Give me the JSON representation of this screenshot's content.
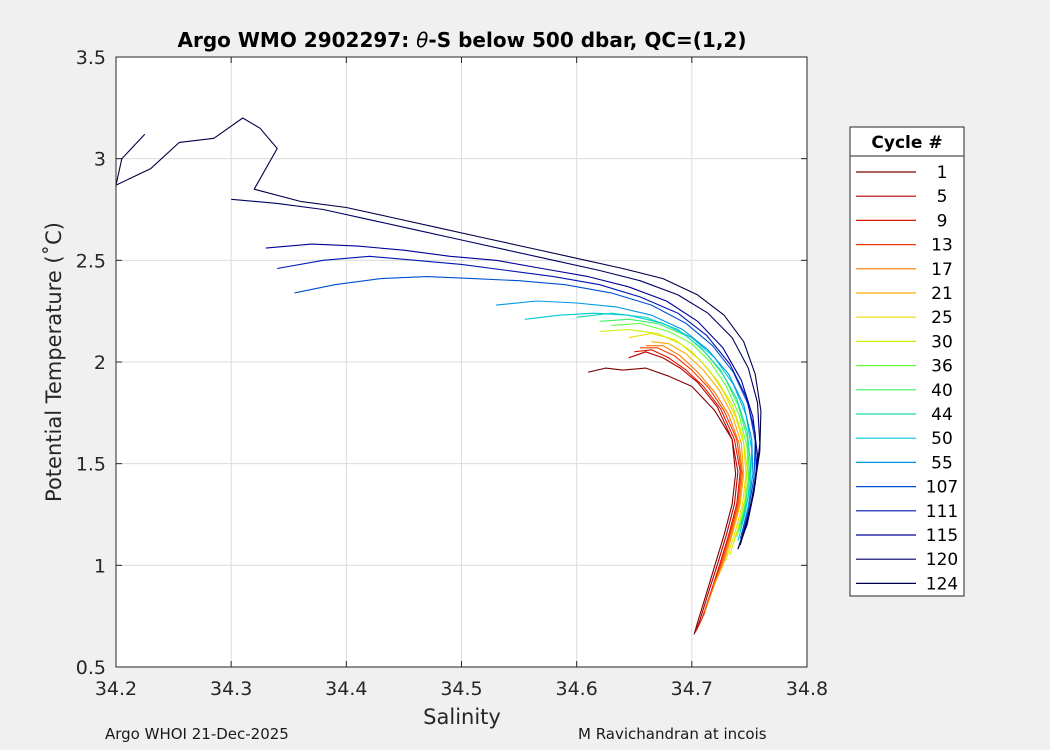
{
  "chart_data": {
    "type": "line",
    "title": "Argo WMO 2902297: θ-S below 500 dbar,  QC=(1,2)",
    "title_parts": {
      "prefix": "Argo WMO 2902297: ",
      "symbol": "θ",
      "suffix": "-S below 500 dbar,  QC=(1,2)"
    },
    "xlabel": "Salinity",
    "ylabel": "Potential Temperature (˚C)",
    "xlim": [
      34.2,
      34.8
    ],
    "ylim": [
      0.5,
      3.5
    ],
    "xticks": [
      "34.2",
      "34.3",
      "34.4",
      "34.5",
      "34.6",
      "34.7",
      "34.8"
    ],
    "yticks": [
      "0.5",
      "1",
      "1.5",
      "2",
      "2.5",
      "3",
      "3.5"
    ],
    "grid": true,
    "legend_title": "Cycle #",
    "legend_position": "right-outside",
    "series": [
      {
        "name": "1",
        "color": "#800000",
        "values": [
          [
            34.61,
            1.95
          ],
          [
            34.625,
            1.97
          ],
          [
            34.64,
            1.96
          ],
          [
            34.66,
            1.97
          ],
          [
            34.68,
            1.93
          ],
          [
            34.7,
            1.88
          ],
          [
            34.72,
            1.76
          ],
          [
            34.735,
            1.62
          ],
          [
            34.738,
            1.45
          ],
          [
            34.735,
            1.3
          ],
          [
            34.728,
            1.15
          ],
          [
            34.72,
            1.0
          ],
          [
            34.712,
            0.85
          ],
          [
            34.705,
            0.72
          ],
          [
            34.702,
            0.66
          ]
        ]
      },
      {
        "name": "5",
        "color": "#b40000",
        "values": [
          [
            34.645,
            2.02
          ],
          [
            34.66,
            2.05
          ],
          [
            34.675,
            2.02
          ],
          [
            34.69,
            1.97
          ],
          [
            34.705,
            1.9
          ],
          [
            34.722,
            1.78
          ],
          [
            34.735,
            1.62
          ],
          [
            34.74,
            1.46
          ],
          [
            34.737,
            1.3
          ],
          [
            34.73,
            1.15
          ],
          [
            34.722,
            1.0
          ],
          [
            34.714,
            0.86
          ],
          [
            34.707,
            0.73
          ],
          [
            34.703,
            0.67
          ]
        ]
      },
      {
        "name": "9",
        "color": "#dc1400",
        "values": [
          [
            34.65,
            2.05
          ],
          [
            34.665,
            2.06
          ],
          [
            34.68,
            2.02
          ],
          [
            34.695,
            1.96
          ],
          [
            34.71,
            1.88
          ],
          [
            34.725,
            1.77
          ],
          [
            34.737,
            1.62
          ],
          [
            34.742,
            1.46
          ],
          [
            34.739,
            1.3
          ],
          [
            34.732,
            1.15
          ],
          [
            34.724,
            1.0
          ],
          [
            34.716,
            0.86
          ],
          [
            34.709,
            0.74
          ],
          [
            34.704,
            0.68
          ]
        ]
      },
      {
        "name": "13",
        "color": "#f03c00",
        "values": [
          [
            34.655,
            2.07
          ],
          [
            34.67,
            2.07
          ],
          [
            34.685,
            2.03
          ],
          [
            34.7,
            1.96
          ],
          [
            34.715,
            1.87
          ],
          [
            34.728,
            1.76
          ],
          [
            34.739,
            1.62
          ],
          [
            34.743,
            1.46
          ],
          [
            34.74,
            1.3
          ],
          [
            34.733,
            1.15
          ],
          [
            34.725,
            1.0
          ],
          [
            34.717,
            0.87
          ],
          [
            34.71,
            0.75
          ]
        ]
      },
      {
        "name": "17",
        "color": "#ff7800",
        "values": [
          [
            34.66,
            2.08
          ],
          [
            34.675,
            2.08
          ],
          [
            34.69,
            2.03
          ],
          [
            34.705,
            1.95
          ],
          [
            34.72,
            1.85
          ],
          [
            34.732,
            1.74
          ],
          [
            34.741,
            1.6
          ],
          [
            34.744,
            1.45
          ],
          [
            34.741,
            1.3
          ],
          [
            34.734,
            1.15
          ],
          [
            34.726,
            1.0
          ],
          [
            34.718,
            0.88
          ],
          [
            34.711,
            0.77
          ]
        ]
      },
      {
        "name": "21",
        "color": "#ffaa00",
        "values": [
          [
            34.665,
            2.1
          ],
          [
            34.68,
            2.09
          ],
          [
            34.695,
            2.04
          ],
          [
            34.71,
            1.96
          ],
          [
            34.724,
            1.86
          ],
          [
            34.735,
            1.74
          ],
          [
            34.743,
            1.6
          ],
          [
            34.745,
            1.45
          ],
          [
            34.742,
            1.3
          ],
          [
            34.735,
            1.15
          ],
          [
            34.727,
            1.0
          ],
          [
            34.719,
            0.9
          ]
        ]
      },
      {
        "name": "25",
        "color": "#f0dc00",
        "values": [
          [
            34.645,
            2.12
          ],
          [
            34.665,
            2.14
          ],
          [
            34.685,
            2.11
          ],
          [
            34.7,
            2.05
          ],
          [
            34.715,
            1.96
          ],
          [
            34.728,
            1.85
          ],
          [
            34.738,
            1.73
          ],
          [
            34.745,
            1.6
          ],
          [
            34.747,
            1.45
          ],
          [
            34.744,
            1.3
          ],
          [
            34.737,
            1.15
          ],
          [
            34.729,
            1.02
          ]
        ]
      },
      {
        "name": "30",
        "color": "#c8f000",
        "values": [
          [
            34.62,
            2.15
          ],
          [
            34.645,
            2.16
          ],
          [
            34.67,
            2.14
          ],
          [
            34.69,
            2.09
          ],
          [
            34.707,
            2.01
          ],
          [
            34.722,
            1.91
          ],
          [
            34.735,
            1.79
          ],
          [
            34.744,
            1.64
          ],
          [
            34.748,
            1.48
          ],
          [
            34.746,
            1.32
          ],
          [
            34.74,
            1.18
          ],
          [
            34.733,
            1.05
          ]
        ]
      },
      {
        "name": "36",
        "color": "#64ff3c",
        "values": [
          [
            34.63,
            2.18
          ],
          [
            34.655,
            2.19
          ],
          [
            34.68,
            2.15
          ],
          [
            34.7,
            2.09
          ],
          [
            34.716,
            2.0
          ],
          [
            34.73,
            1.88
          ],
          [
            34.741,
            1.74
          ],
          [
            34.748,
            1.58
          ],
          [
            34.749,
            1.42
          ],
          [
            34.745,
            1.27
          ],
          [
            34.739,
            1.14
          ]
        ]
      },
      {
        "name": "40",
        "color": "#3cf064",
        "values": [
          [
            34.62,
            2.2
          ],
          [
            34.645,
            2.21
          ],
          [
            34.67,
            2.19
          ],
          [
            34.695,
            2.13
          ],
          [
            34.713,
            2.04
          ],
          [
            34.728,
            1.93
          ],
          [
            34.74,
            1.79
          ],
          [
            34.748,
            1.63
          ],
          [
            34.75,
            1.47
          ],
          [
            34.747,
            1.31
          ],
          [
            34.741,
            1.17
          ]
        ]
      },
      {
        "name": "44",
        "color": "#14dcaa",
        "values": [
          [
            34.6,
            2.22
          ],
          [
            34.63,
            2.24
          ],
          [
            34.66,
            2.22
          ],
          [
            34.688,
            2.16
          ],
          [
            34.708,
            2.07
          ],
          [
            34.725,
            1.96
          ],
          [
            34.739,
            1.82
          ],
          [
            34.748,
            1.66
          ],
          [
            34.751,
            1.5
          ],
          [
            34.749,
            1.34
          ],
          [
            34.743,
            1.2
          ]
        ]
      },
      {
        "name": "50",
        "color": "#00c8dc",
        "values": [
          [
            34.555,
            2.21
          ],
          [
            34.585,
            2.23
          ],
          [
            34.615,
            2.24
          ],
          [
            34.645,
            2.23
          ],
          [
            34.675,
            2.19
          ],
          [
            34.7,
            2.12
          ],
          [
            34.72,
            2.02
          ],
          [
            34.736,
            1.89
          ],
          [
            34.747,
            1.74
          ],
          [
            34.752,
            1.57
          ],
          [
            34.751,
            1.4
          ],
          [
            34.746,
            1.25
          ],
          [
            34.74,
            1.12
          ]
        ]
      },
      {
        "name": "55",
        "color": "#0096e6",
        "values": [
          [
            34.53,
            2.28
          ],
          [
            34.565,
            2.3
          ],
          [
            34.6,
            2.29
          ],
          [
            34.635,
            2.27
          ],
          [
            34.665,
            2.23
          ],
          [
            34.692,
            2.16
          ],
          [
            34.714,
            2.06
          ],
          [
            34.732,
            1.94
          ],
          [
            34.745,
            1.79
          ],
          [
            34.752,
            1.62
          ],
          [
            34.753,
            1.45
          ],
          [
            34.749,
            1.29
          ],
          [
            34.743,
            1.15
          ]
        ]
      },
      {
        "name": "107",
        "color": "#0050d2",
        "values": [
          [
            34.355,
            2.34
          ],
          [
            34.39,
            2.38
          ],
          [
            34.43,
            2.41
          ],
          [
            34.47,
            2.42
          ],
          [
            34.51,
            2.41
          ],
          [
            34.55,
            2.4
          ],
          [
            34.59,
            2.38
          ],
          [
            34.63,
            2.34
          ],
          [
            34.665,
            2.28
          ],
          [
            34.695,
            2.19
          ],
          [
            34.718,
            2.08
          ],
          [
            34.736,
            1.95
          ],
          [
            34.749,
            1.79
          ],
          [
            34.755,
            1.61
          ],
          [
            34.754,
            1.43
          ],
          [
            34.749,
            1.27
          ],
          [
            34.742,
            1.13
          ]
        ]
      },
      {
        "name": "111",
        "color": "#0014b4",
        "values": [
          [
            34.34,
            2.46
          ],
          [
            34.38,
            2.5
          ],
          [
            34.42,
            2.52
          ],
          [
            34.46,
            2.5
          ],
          [
            34.5,
            2.48
          ],
          [
            34.54,
            2.45
          ],
          [
            34.58,
            2.42
          ],
          [
            34.62,
            2.38
          ],
          [
            34.655,
            2.32
          ],
          [
            34.688,
            2.24
          ],
          [
            34.713,
            2.13
          ],
          [
            34.733,
            1.99
          ],
          [
            34.747,
            1.83
          ],
          [
            34.755,
            1.65
          ],
          [
            34.756,
            1.46
          ],
          [
            34.751,
            1.29
          ],
          [
            34.744,
            1.15
          ]
        ]
      },
      {
        "name": "115",
        "color": "#000096",
        "values": [
          [
            34.33,
            2.56
          ],
          [
            34.37,
            2.58
          ],
          [
            34.41,
            2.57
          ],
          [
            34.45,
            2.55
          ],
          [
            34.49,
            2.52
          ],
          [
            34.53,
            2.5
          ],
          [
            34.57,
            2.46
          ],
          [
            34.61,
            2.42
          ],
          [
            34.645,
            2.37
          ],
          [
            34.678,
            2.3
          ],
          [
            34.705,
            2.2
          ],
          [
            34.727,
            2.07
          ],
          [
            34.743,
            1.91
          ],
          [
            34.753,
            1.73
          ],
          [
            34.757,
            1.54
          ],
          [
            34.754,
            1.36
          ],
          [
            34.748,
            1.2
          ],
          [
            34.74,
            1.08
          ]
        ]
      },
      {
        "name": "120",
        "color": "#000064",
        "values": [
          [
            34.3,
            2.8
          ],
          [
            34.34,
            2.78
          ],
          [
            34.38,
            2.75
          ],
          [
            34.42,
            2.7
          ],
          [
            34.46,
            2.65
          ],
          [
            34.5,
            2.6
          ],
          [
            34.54,
            2.55
          ],
          [
            34.58,
            2.5
          ],
          [
            34.62,
            2.45
          ],
          [
            34.655,
            2.4
          ],
          [
            34.688,
            2.33
          ],
          [
            34.714,
            2.24
          ],
          [
            34.735,
            2.12
          ],
          [
            34.749,
            1.97
          ],
          [
            34.757,
            1.8
          ],
          [
            34.759,
            1.6
          ],
          [
            34.755,
            1.4
          ],
          [
            34.749,
            1.23
          ],
          [
            34.742,
            1.1
          ]
        ]
      },
      {
        "name": "124",
        "color": "#00004b",
        "values": [
          [
            34.225,
            3.12
          ],
          [
            34.205,
            3.0
          ],
          [
            34.2,
            2.87
          ],
          [
            34.23,
            2.95
          ],
          [
            34.255,
            3.08
          ],
          [
            34.285,
            3.1
          ],
          [
            34.31,
            3.2
          ],
          [
            34.325,
            3.15
          ],
          [
            34.34,
            3.05
          ],
          [
            34.32,
            2.85
          ],
          [
            34.36,
            2.79
          ],
          [
            34.4,
            2.76
          ],
          [
            34.44,
            2.71
          ],
          [
            34.48,
            2.66
          ],
          [
            34.52,
            2.61
          ],
          [
            34.56,
            2.56
          ],
          [
            34.6,
            2.51
          ],
          [
            34.64,
            2.46
          ],
          [
            34.675,
            2.41
          ],
          [
            34.705,
            2.33
          ],
          [
            34.728,
            2.23
          ],
          [
            34.745,
            2.1
          ],
          [
            34.755,
            1.94
          ],
          [
            34.76,
            1.76
          ],
          [
            34.759,
            1.56
          ],
          [
            34.754,
            1.37
          ],
          [
            34.747,
            1.2
          ],
          [
            34.74,
            1.08
          ]
        ]
      }
    ]
  },
  "footer": {
    "left": "Argo WHOI 21-Dec-2025",
    "right": "M Ravichandran at incois"
  }
}
